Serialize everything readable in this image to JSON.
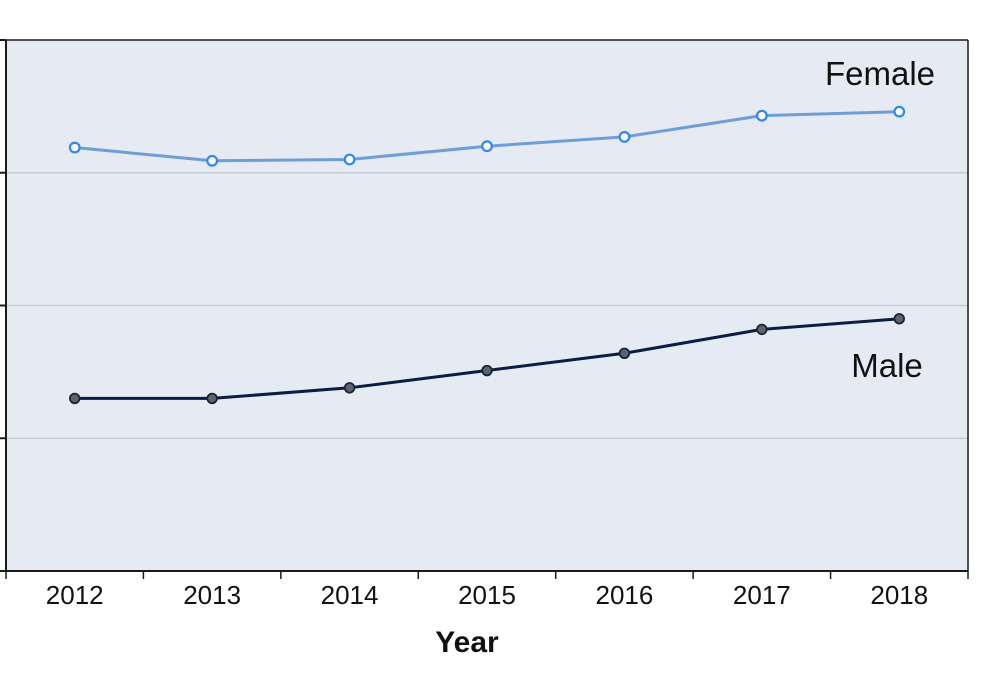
{
  "chart_data": {
    "type": "line",
    "xlabel": "Year",
    "ylabel": "",
    "categories": [
      "2012",
      "2013",
      "2014",
      "2015",
      "2016",
      "2017",
      "2018"
    ],
    "ylim": [
      0,
      4
    ],
    "y_ticks": [
      0,
      1,
      2,
      3,
      4
    ],
    "y_tick_labels_visible": false,
    "grid": true,
    "plot_background": "#e6eaf2",
    "series": [
      {
        "name": "Female",
        "values": [
          3.19,
          3.09,
          3.1,
          3.2,
          3.27,
          3.43,
          3.46
        ],
        "color": "#6f9dd8",
        "marker": "open-circle",
        "marker_color": "#2f86f0"
      },
      {
        "name": "Male",
        "values": [
          1.3,
          1.3,
          1.38,
          1.51,
          1.64,
          1.82,
          1.9
        ],
        "color": "#0b1d45",
        "marker": "filled-circle",
        "marker_color": "#5d6471"
      }
    ]
  }
}
